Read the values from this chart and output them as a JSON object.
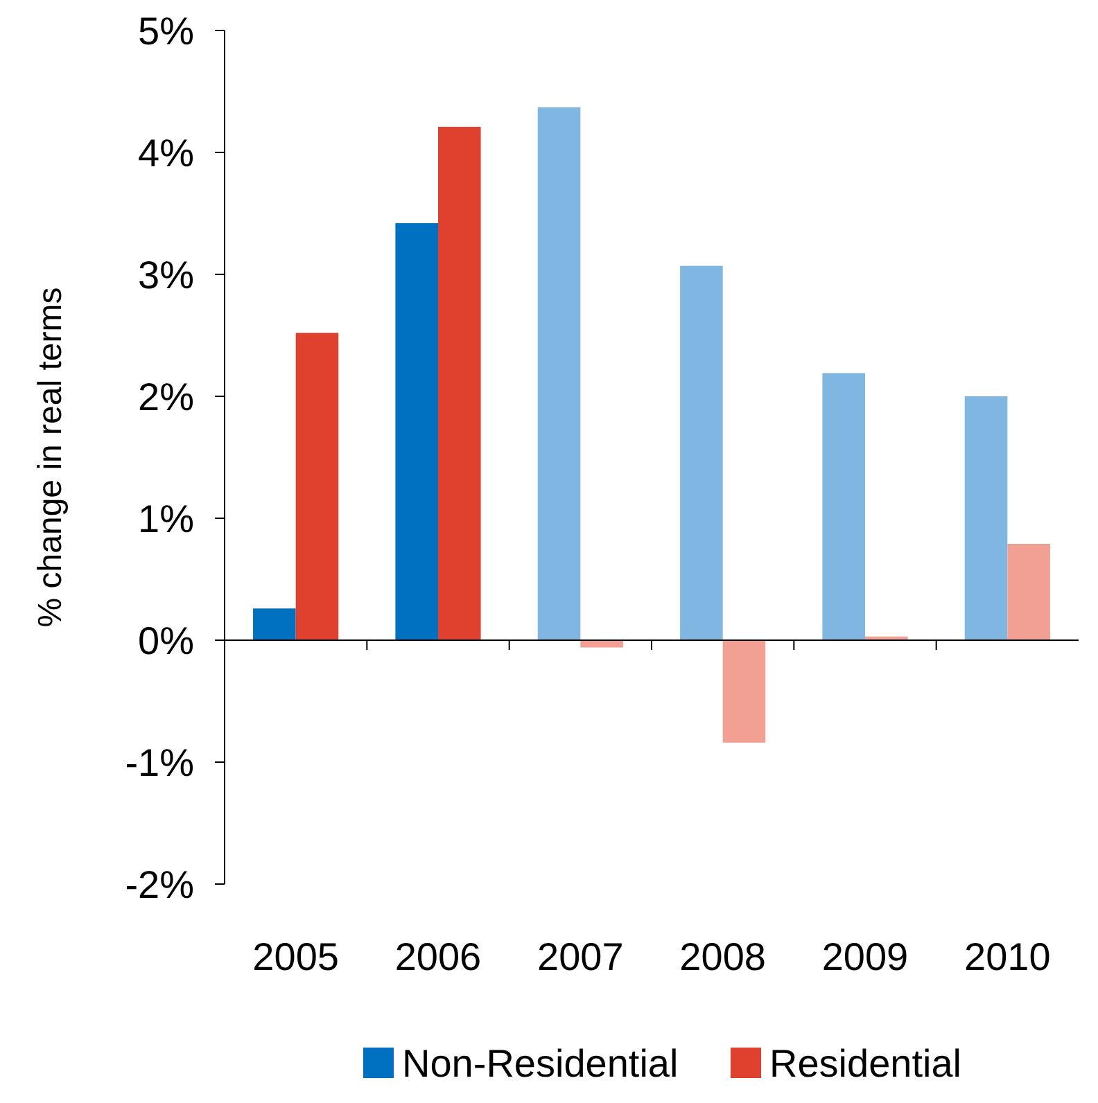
{
  "chart_data": {
    "type": "bar",
    "ylabel": "% change in real terms",
    "categories": [
      "2005",
      "2006",
      "2007",
      "2008",
      "2009",
      "2010"
    ],
    "series": [
      {
        "name": "Non-Residential",
        "color": "#0070c0",
        "colors": [
          "#0070c0",
          "#0070c0",
          "#80b7e2",
          "#80b7e2",
          "#80b7e2",
          "#80b7e2"
        ],
        "values": [
          0.26,
          3.42,
          4.37,
          3.07,
          2.19,
          2.0
        ]
      },
      {
        "name": "Residential",
        "color": "#e0402e",
        "colors": [
          "#e0402e",
          "#e0402e",
          "#f2a094",
          "#f2a094",
          "#f2a094",
          "#f2a094"
        ],
        "values": [
          2.52,
          4.21,
          -0.06,
          -0.84,
          0.03,
          0.79
        ]
      }
    ],
    "ylim": [
      -2,
      5
    ],
    "yticks": [
      {
        "value": -2,
        "label": "-2%"
      },
      {
        "value": -1,
        "label": "-1%"
      },
      {
        "value": 0,
        "label": "0%"
      },
      {
        "value": 1,
        "label": "1%"
      },
      {
        "value": 2,
        "label": "2%"
      },
      {
        "value": 3,
        "label": "3%"
      },
      {
        "value": 4,
        "label": "4%"
      },
      {
        "value": 5,
        "label": "5%"
      }
    ],
    "legend": "bottom"
  }
}
